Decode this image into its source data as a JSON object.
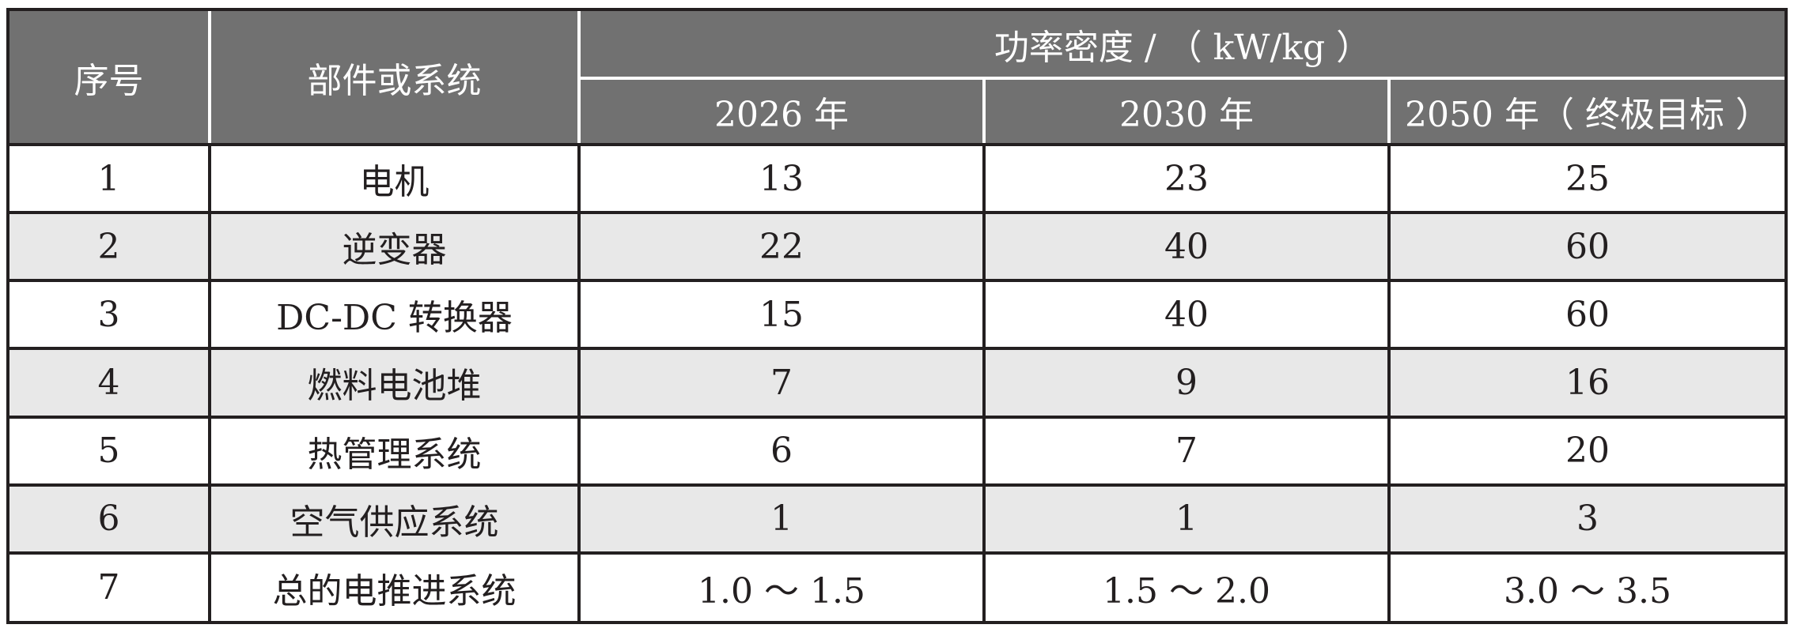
{
  "header": {
    "index_label": "序号",
    "name_label": "部件或系统",
    "group_label": "功率密度 / （ kW/kg ）",
    "years": [
      "2026 年",
      "2030 年",
      "2050 年（ 终极目标 ）"
    ]
  },
  "rows": [
    {
      "idx": "1",
      "name": "电机",
      "v2026": "13",
      "v2030": "23",
      "v2050": "25"
    },
    {
      "idx": "2",
      "name": "逆变器",
      "v2026": "22",
      "v2030": "40",
      "v2050": "60"
    },
    {
      "idx": "3",
      "name": "DC-DC 转换器",
      "v2026": "15",
      "v2030": "40",
      "v2050": "60"
    },
    {
      "idx": "4",
      "name": "燃料电池堆",
      "v2026": "7",
      "v2030": "9",
      "v2050": "16"
    },
    {
      "idx": "5",
      "name": "热管理系统",
      "v2026": "6",
      "v2030": "7",
      "v2050": "20"
    },
    {
      "idx": "6",
      "name": "空气供应系统",
      "v2026": "1",
      "v2030": "1",
      "v2050": "3"
    },
    {
      "idx": "7",
      "name": "总的电推进系统",
      "v2026": "1.0 ～ 1.5",
      "v2030": "1.5 ～ 2.0",
      "v2050": "3.0 ～ 3.5"
    }
  ],
  "colors": {
    "header_bg": "#717171",
    "header_text": "#ffffff",
    "shaded_row_bg": "#e8e8e8",
    "border": "#231f20"
  }
}
